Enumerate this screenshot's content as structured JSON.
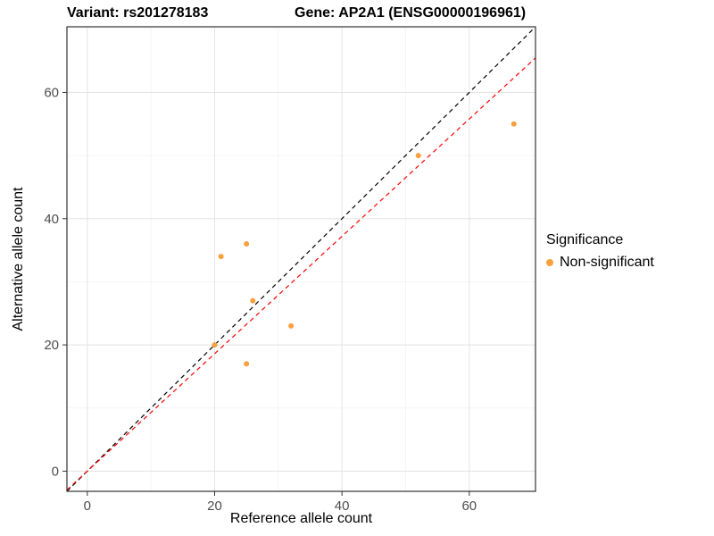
{
  "chart_data": {
    "type": "scatter",
    "title_left": "Variant: rs201278183",
    "title_right": "Gene: AP2A1 (ENSG00000196961)",
    "xlabel": "Reference allele count",
    "ylabel": "Alternative allele count",
    "xlim": [
      -3.2,
      70.4
    ],
    "ylim": [
      -3.2,
      70.4
    ],
    "x_ticks": [
      0,
      20,
      40,
      60
    ],
    "y_ticks": [
      0,
      20,
      40,
      60
    ],
    "x_minor_ticks": [
      10,
      30,
      50,
      70
    ],
    "y_minor_ticks": [
      10,
      30,
      50,
      70
    ],
    "grid": true,
    "series": [
      {
        "name": "Non-significant",
        "color": "#F9A03F",
        "point_radius": 3,
        "points": [
          {
            "x": 20,
            "y": 20
          },
          {
            "x": 21,
            "y": 34
          },
          {
            "x": 25,
            "y": 36
          },
          {
            "x": 25,
            "y": 17
          },
          {
            "x": 26,
            "y": 27
          },
          {
            "x": 32,
            "y": 23
          },
          {
            "x": 52,
            "y": 50
          },
          {
            "x": 67,
            "y": 55
          }
        ]
      }
    ],
    "reference_lines": [
      {
        "name": "identity",
        "slope": 1,
        "intercept": 0,
        "color": "#000000",
        "dash": "5,4"
      },
      {
        "name": "fit",
        "slope": 0.93,
        "intercept": 0,
        "color": "#FF0000",
        "dash": "5,4"
      }
    ],
    "legend": {
      "title": "Significance",
      "position": "right",
      "items": [
        {
          "label": "Non-significant",
          "color": "#F9A03F"
        }
      ]
    },
    "panel": {
      "background": "#FFFFFF",
      "border_color": "#333333",
      "grid_major_color": "#E3E3E3",
      "grid_minor_color": "#F1F1F1",
      "tick_color": "#333333",
      "tick_label_color": "#4D4D4D"
    }
  }
}
